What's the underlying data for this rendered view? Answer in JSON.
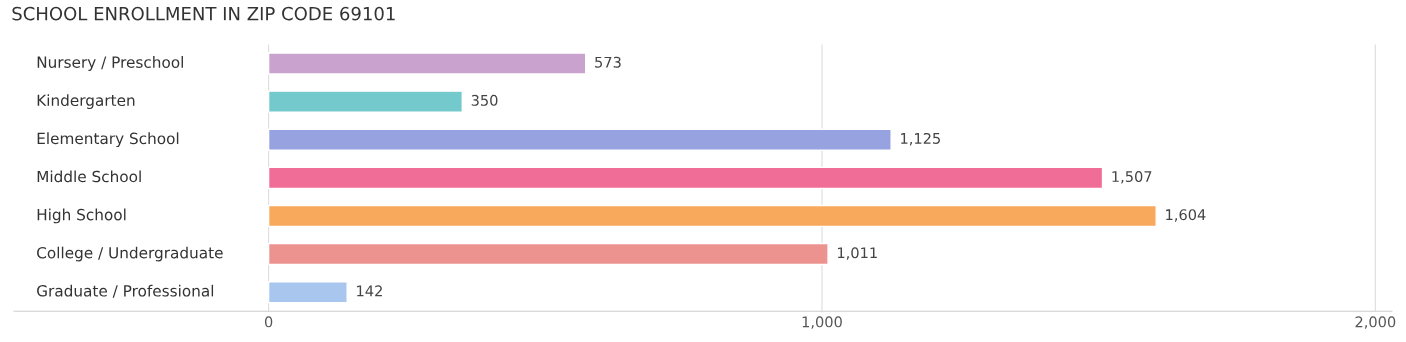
{
  "chart_data": {
    "type": "bar",
    "orientation": "horizontal",
    "title": "SCHOOL ENROLLMENT IN ZIP CODE 69101",
    "categories": [
      "Nursery / Preschool",
      "Kindergarten",
      "Elementary School",
      "Middle School",
      "High School",
      "College / Undergraduate",
      "Graduate / Professional"
    ],
    "values": [
      573,
      350,
      1125,
      1507,
      1604,
      1011,
      142
    ],
    "value_labels": [
      "573",
      "350",
      "1,125",
      "1,507",
      "1,604",
      "1,011",
      "142"
    ],
    "colors": [
      "#c9a3cd",
      "#74c9cc",
      "#97a3e0",
      "#f06d97",
      "#f9a95c",
      "#ec9390",
      "#a9c7ee"
    ],
    "xlim": [
      -460,
      2030
    ],
    "xticks": [
      0,
      {
        "value": 1000,
        "label": "1,000"
      },
      {
        "value": 2000,
        "label": "2,000"
      }
    ],
    "grid": "x",
    "legend": false
  }
}
